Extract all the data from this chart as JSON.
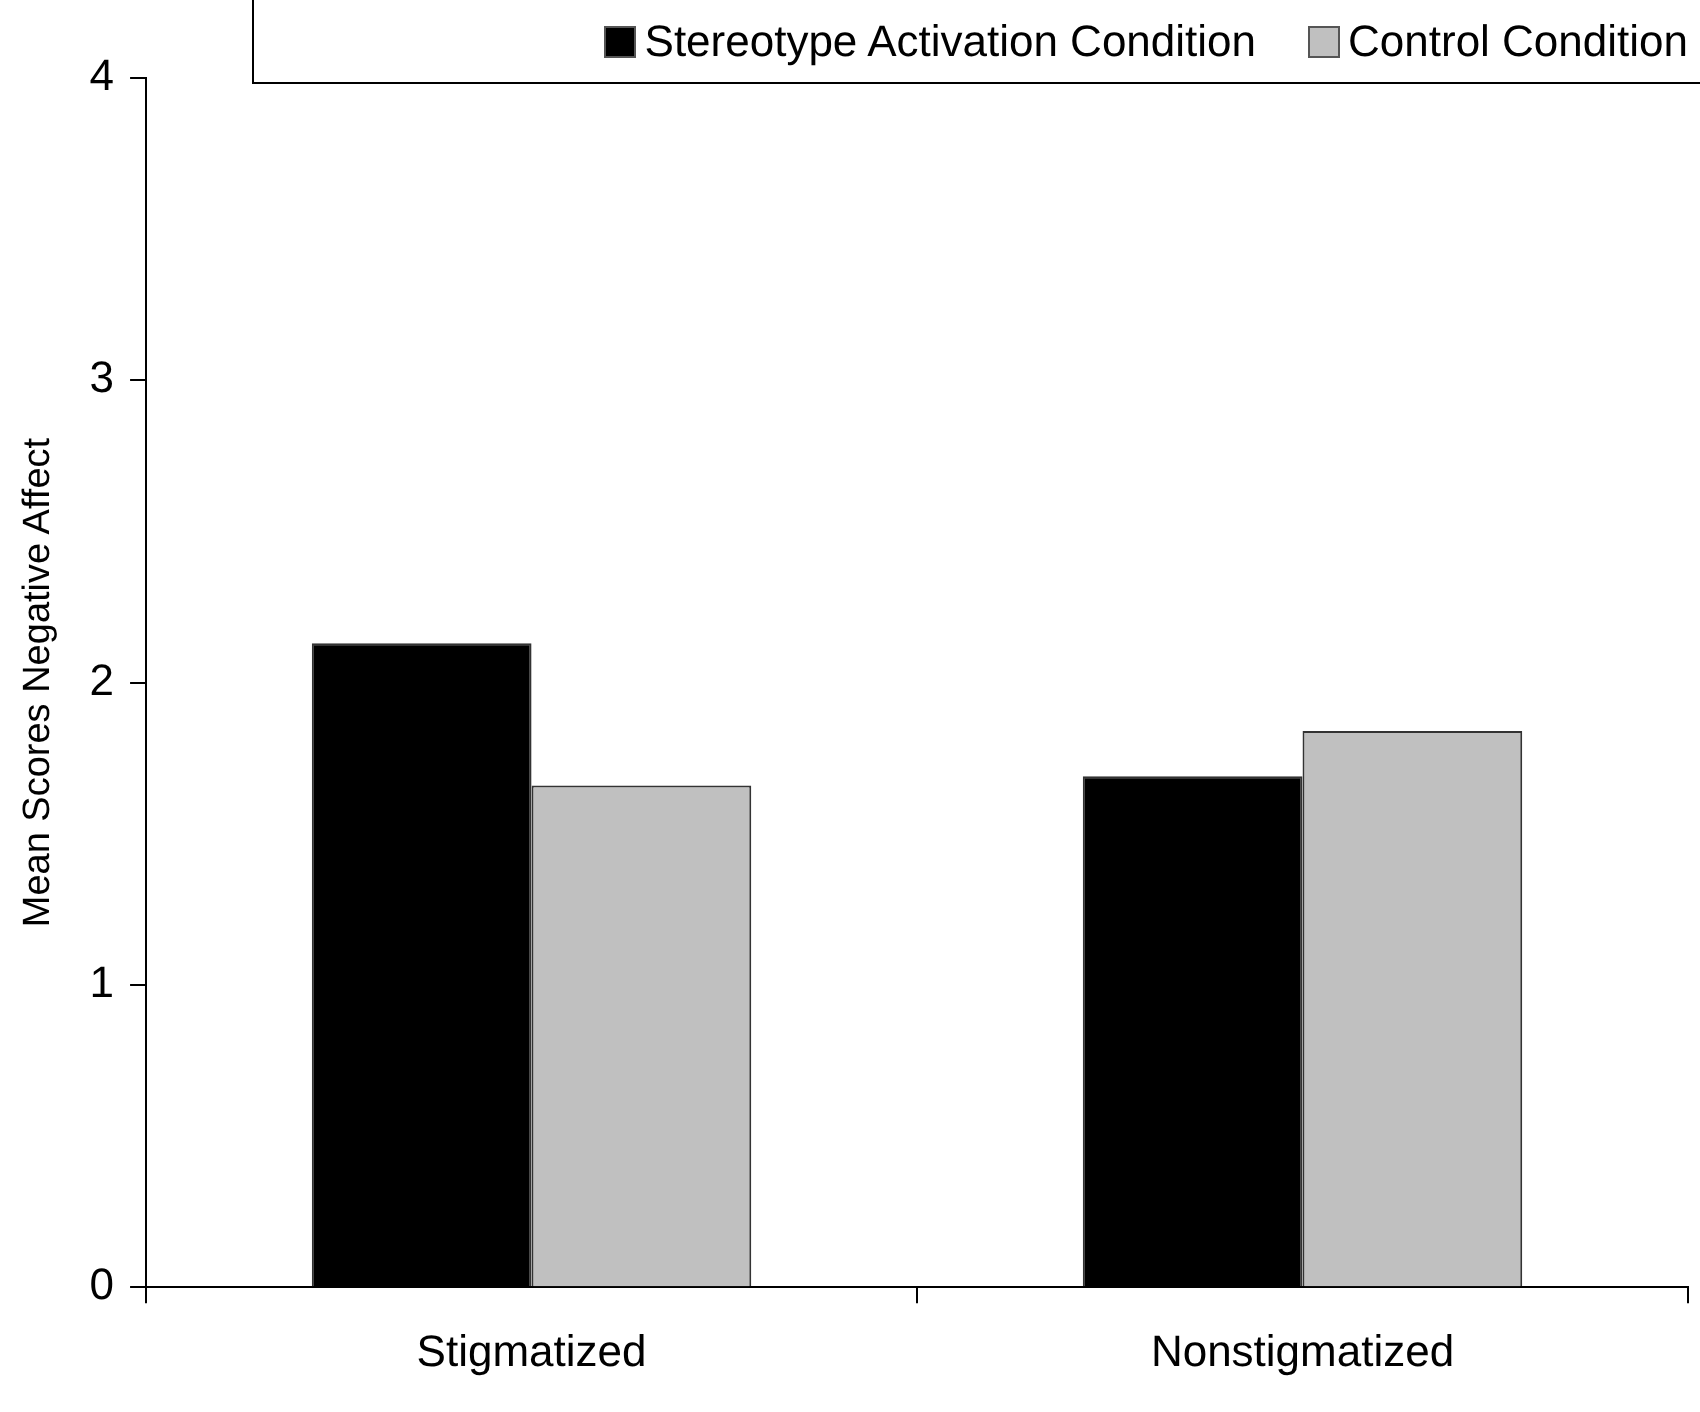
{
  "chart_data": {
    "type": "bar",
    "ylabel": "Mean Scores Negative Affect",
    "categories": [
      "Stigmatized",
      "Nonstigmatized"
    ],
    "series": [
      {
        "name": "Stereotype Activation Condition",
        "color": "#000000",
        "values": [
          2.13,
          1.69
        ]
      },
      {
        "name": "Control Condition",
        "color": "#c0c0c0",
        "values": [
          1.66,
          1.84
        ]
      }
    ],
    "ylim": [
      0,
      4
    ],
    "yticks": [
      0,
      1,
      2,
      3,
      4
    ],
    "grid": false,
    "legend": "top"
  }
}
